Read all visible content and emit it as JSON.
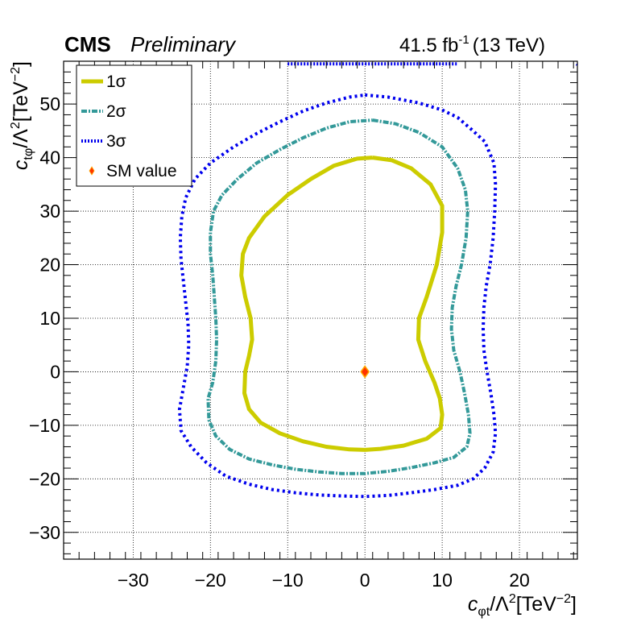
{
  "header": {
    "experiment": "CMS",
    "status": "Preliminary",
    "lumi_value": "41.5 fb",
    "lumi_exp": "-1",
    "energy": "(13 TeV)"
  },
  "axes": {
    "x_title_var": "c",
    "x_title_sub": "φt",
    "x_title_rest": "/Λ",
    "x_title_sup": "2",
    "x_title_unit": "[TeV",
    "x_title_unit_sup": "−2",
    "x_title_close": "]",
    "y_title_var": "c",
    "y_title_sub": "tφ",
    "y_title_rest": "/Λ",
    "y_title_sup": "2",
    "y_title_unit": "[TeV",
    "y_title_unit_sup": "−2",
    "y_title_close": "]"
  },
  "legend": {
    "items": [
      {
        "label": "1σ",
        "color": "#cccc00",
        "style": "thick-line"
      },
      {
        "label": "2σ",
        "color": "#339999",
        "style": "dashed-line"
      },
      {
        "label": "3σ",
        "color": "#0000ee",
        "style": "dotted-line"
      },
      {
        "label": "SM value",
        "color": "#ff3300",
        "style": "marker"
      }
    ]
  },
  "chart_data": {
    "type": "contour",
    "xlim": [
      -39,
      27.5
    ],
    "ylim": [
      -35,
      58
    ],
    "xticks": [
      -30,
      -20,
      -10,
      0,
      10,
      20
    ],
    "xtick_labels": [
      "−30",
      "−20",
      "−10",
      "0",
      "10",
      "20"
    ],
    "yticks": [
      -30,
      -20,
      -10,
      0,
      10,
      20,
      30,
      40,
      50
    ],
    "ytick_labels": [
      "−30",
      "−20",
      "−10",
      "0",
      "10",
      "20",
      "30",
      "40",
      "50"
    ],
    "grid": true,
    "legend_position": "top-left",
    "sm_point": {
      "x": 0,
      "y": 0,
      "color": "#ff3300",
      "edge": "#ffaa00"
    },
    "series": [
      {
        "name": "1σ",
        "color": "#cccc00",
        "points": [
          [
            1,
            40
          ],
          [
            3.5,
            39.5
          ],
          [
            6,
            38
          ],
          [
            8.5,
            35
          ],
          [
            10,
            31
          ],
          [
            10,
            26
          ],
          [
            9.3,
            20
          ],
          [
            8,
            14
          ],
          [
            7,
            10
          ],
          [
            6.9,
            6
          ],
          [
            7.8,
            2
          ],
          [
            9,
            -2
          ],
          [
            9.7,
            -5
          ],
          [
            10,
            -8
          ],
          [
            9.8,
            -10.5
          ],
          [
            8,
            -12.5
          ],
          [
            5,
            -13.8
          ],
          [
            2,
            -14.4
          ],
          [
            0,
            -14.6
          ],
          [
            -2,
            -14.5
          ],
          [
            -5,
            -14
          ],
          [
            -8,
            -13
          ],
          [
            -11,
            -11.5
          ],
          [
            -13.5,
            -9.5
          ],
          [
            -15,
            -7
          ],
          [
            -15.6,
            -4
          ],
          [
            -15.5,
            0
          ],
          [
            -15,
            3
          ],
          [
            -14.6,
            6
          ],
          [
            -14.8,
            10
          ],
          [
            -15.5,
            14
          ],
          [
            -16,
            18
          ],
          [
            -15.8,
            22
          ],
          [
            -15,
            25
          ],
          [
            -13,
            29
          ],
          [
            -10,
            33
          ],
          [
            -7,
            36
          ],
          [
            -4,
            38.5
          ],
          [
            -1,
            39.8
          ],
          [
            1,
            40
          ]
        ]
      },
      {
        "name": "2σ",
        "color": "#339999",
        "points": [
          [
            1,
            47
          ],
          [
            4,
            46.3
          ],
          [
            7,
            44.7
          ],
          [
            10,
            42
          ],
          [
            12,
            38
          ],
          [
            13,
            34
          ],
          [
            13.3,
            30
          ],
          [
            13.1,
            25
          ],
          [
            12.5,
            20
          ],
          [
            11.8,
            16
          ],
          [
            11.3,
            12
          ],
          [
            11.2,
            8
          ],
          [
            11.5,
            4
          ],
          [
            12.3,
            0
          ],
          [
            12.9,
            -4
          ],
          [
            13.4,
            -8
          ],
          [
            13.6,
            -11.5
          ],
          [
            13.2,
            -14
          ],
          [
            11.5,
            -16
          ],
          [
            9,
            -17
          ],
          [
            6,
            -17.9
          ],
          [
            3,
            -18.6
          ],
          [
            0,
            -19
          ],
          [
            -3,
            -19
          ],
          [
            -6,
            -18.7
          ],
          [
            -9,
            -18.2
          ],
          [
            -12,
            -17.4
          ],
          [
            -15,
            -16.3
          ],
          [
            -17.5,
            -14.5
          ],
          [
            -19.3,
            -12
          ],
          [
            -20.2,
            -9
          ],
          [
            -20.3,
            -5
          ],
          [
            -19.7,
            -2
          ],
          [
            -19.3,
            2
          ],
          [
            -19.2,
            6
          ],
          [
            -19.3,
            10
          ],
          [
            -19.5,
            14
          ],
          [
            -19.7,
            18
          ],
          [
            -20,
            22
          ],
          [
            -20,
            26
          ],
          [
            -19.6,
            30
          ],
          [
            -18.5,
            33
          ],
          [
            -16.5,
            36
          ],
          [
            -14,
            39
          ],
          [
            -11,
            41.5
          ],
          [
            -8,
            43.7
          ],
          [
            -5,
            45.5
          ],
          [
            -2,
            46.7
          ],
          [
            1,
            47
          ]
        ]
      },
      {
        "name": "3σ",
        "color": "#0000ee",
        "points": [
          [
            0,
            51.7
          ],
          [
            3,
            51.3
          ],
          [
            7,
            50.2
          ],
          [
            10,
            48.9
          ],
          [
            12,
            47.5
          ],
          [
            14,
            45
          ],
          [
            15.5,
            43
          ],
          [
            16.7,
            39
          ],
          [
            16.9,
            35
          ],
          [
            16.8,
            30
          ],
          [
            16.6,
            25
          ],
          [
            16.2,
            20
          ],
          [
            15.7,
            16
          ],
          [
            15.4,
            12
          ],
          [
            15.3,
            8
          ],
          [
            15.4,
            4
          ],
          [
            15.8,
            0
          ],
          [
            16.3,
            -4
          ],
          [
            16.7,
            -8
          ],
          [
            16.9,
            -11.5
          ],
          [
            16.6,
            -15
          ],
          [
            15.5,
            -18
          ],
          [
            14,
            -20
          ],
          [
            12,
            -21.2
          ],
          [
            9,
            -22
          ],
          [
            6,
            -22.6
          ],
          [
            3,
            -23.1
          ],
          [
            0,
            -23.3
          ],
          [
            -3,
            -23.2
          ],
          [
            -6,
            -23
          ],
          [
            -9,
            -22.6
          ],
          [
            -12,
            -22
          ],
          [
            -15,
            -21
          ],
          [
            -18,
            -19.5
          ],
          [
            -20.5,
            -17
          ],
          [
            -22.5,
            -14
          ],
          [
            -23.8,
            -11
          ],
          [
            -24,
            -7
          ],
          [
            -23.5,
            -3
          ],
          [
            -23,
            1
          ],
          [
            -22.8,
            5
          ],
          [
            -22.9,
            9
          ],
          [
            -23.2,
            13
          ],
          [
            -23.5,
            17
          ],
          [
            -23.8,
            21
          ],
          [
            -23.9,
            25
          ],
          [
            -23.7,
            29
          ],
          [
            -23.2,
            32.5
          ],
          [
            -22,
            36
          ],
          [
            -20,
            39
          ],
          [
            -17,
            42
          ],
          [
            -14,
            44.5
          ],
          [
            -11,
            46.7
          ],
          [
            -8,
            48.7
          ],
          [
            -5,
            50.2
          ],
          [
            -2,
            51.3
          ],
          [
            0,
            51.7
          ]
        ]
      }
    ],
    "extra_3sigma_fragments": [
      [
        [
          -10,
          57.5
        ],
        [
          -7,
          57.5
        ],
        [
          -3,
          57.5
        ],
        [
          0,
          57.5
        ],
        [
          3,
          57.5
        ],
        [
          6,
          57.5
        ],
        [
          9,
          57.5
        ],
        [
          12,
          57.5
        ]
      ],
      [
        [
          27.4,
          57.5
        ],
        [
          27.5,
          57.4
        ]
      ]
    ]
  }
}
